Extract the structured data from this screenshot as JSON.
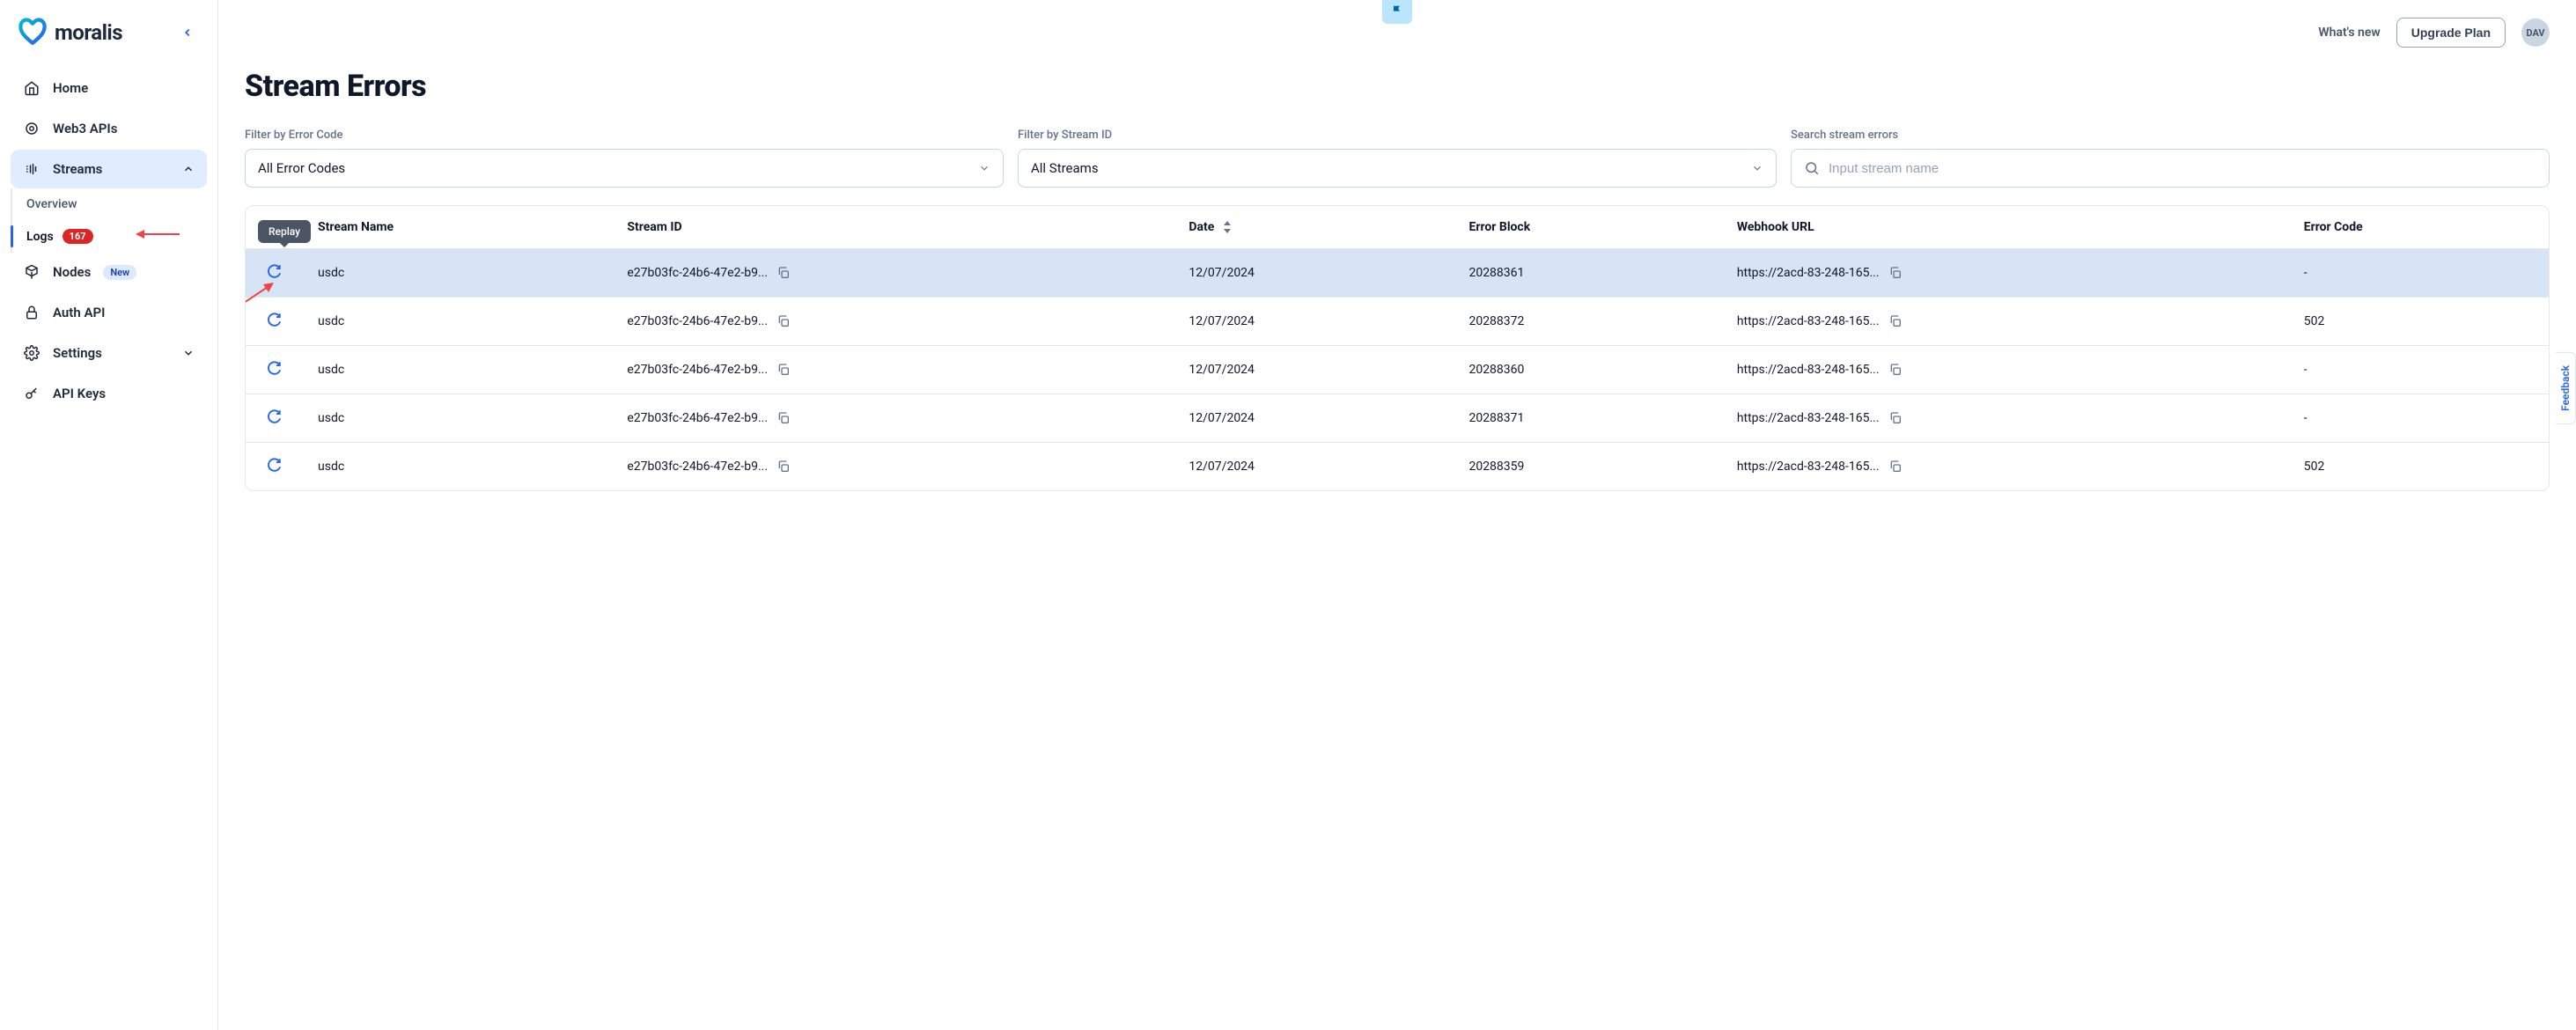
{
  "brand": "moralis",
  "topbar": {
    "whats_new": "What's new",
    "upgrade": "Upgrade Plan",
    "avatar_initials": "DAV"
  },
  "sidebar": {
    "items": [
      {
        "label": "Home",
        "icon": "home-icon"
      },
      {
        "label": "Web3 APIs",
        "icon": "chip-icon"
      },
      {
        "label": "Streams",
        "icon": "stream-icon",
        "active": true,
        "expanded": true
      },
      {
        "label": "Nodes",
        "icon": "cube-icon",
        "badge_new": "New"
      },
      {
        "label": "Auth API",
        "icon": "lock-icon"
      },
      {
        "label": "Settings",
        "icon": "gear-icon",
        "chevron": true
      },
      {
        "label": "API Keys",
        "icon": "key-icon"
      }
    ],
    "streams_sub": [
      {
        "label": "Overview"
      },
      {
        "label": "Logs",
        "active": true,
        "count": "167"
      }
    ]
  },
  "page": {
    "title": "Stream Errors",
    "filters": {
      "error_code_label": "Filter by Error Code",
      "error_code_value": "All Error Codes",
      "stream_id_label": "Filter by Stream ID",
      "stream_id_value": "All Streams",
      "search_label": "Search stream errors",
      "search_placeholder": "Input stream name"
    },
    "tooltip": "Replay",
    "columns": {
      "stream_name": "Stream Name",
      "stream_id": "Stream ID",
      "date": "Date",
      "error_block": "Error Block",
      "webhook_url": "Webhook URL",
      "error_code": "Error Code"
    },
    "rows": [
      {
        "name": "usdc",
        "id": "e27b03fc-24b6-47e2-b9...",
        "date": "12/07/2024",
        "block": "20288361",
        "url": "https://2acd-83-248-165...",
        "code": "-",
        "hl": true
      },
      {
        "name": "usdc",
        "id": "e27b03fc-24b6-47e2-b9...",
        "date": "12/07/2024",
        "block": "20288372",
        "url": "https://2acd-83-248-165...",
        "code": "502"
      },
      {
        "name": "usdc",
        "id": "e27b03fc-24b6-47e2-b9...",
        "date": "12/07/2024",
        "block": "20288360",
        "url": "https://2acd-83-248-165...",
        "code": "-"
      },
      {
        "name": "usdc",
        "id": "e27b03fc-24b6-47e2-b9...",
        "date": "12/07/2024",
        "block": "20288371",
        "url": "https://2acd-83-248-165...",
        "code": "-"
      },
      {
        "name": "usdc",
        "id": "e27b03fc-24b6-47e2-b9...",
        "date": "12/07/2024",
        "block": "20288359",
        "url": "https://2acd-83-248-165...",
        "code": "502"
      }
    ]
  },
  "feedback_label": "Feedback",
  "colors": {
    "accent": "#2563eb",
    "active_bg": "#e0ecff",
    "row_hl": "#d6e4f5",
    "badge_red": "#dc2626",
    "annotation": "#ef4444"
  }
}
